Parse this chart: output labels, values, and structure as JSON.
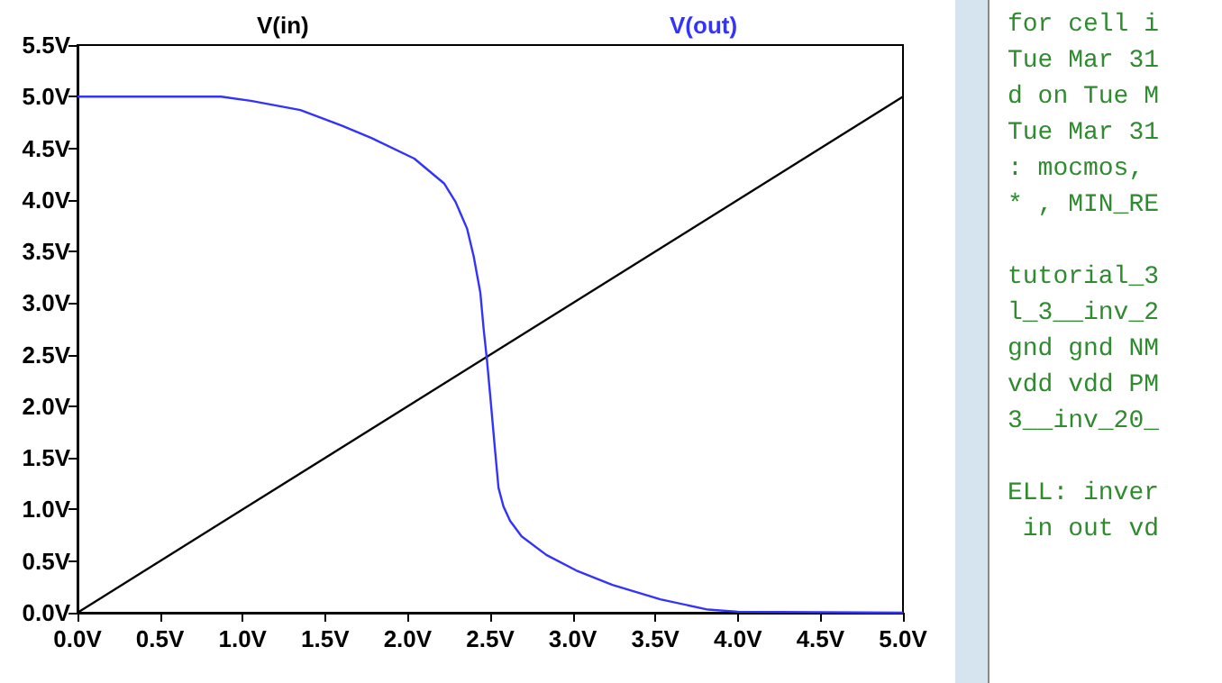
{
  "chart_data": [
    {
      "type": "line",
      "xlim": [
        0,
        5
      ],
      "ylim": [
        0,
        5.5
      ],
      "xticks": [
        {
          "value": 0,
          "label": "0.0V"
        },
        {
          "value": 0.5,
          "label": "0.5V"
        },
        {
          "value": 1,
          "label": "1.0V"
        },
        {
          "value": 1.5,
          "label": "1.5V"
        },
        {
          "value": 2,
          "label": "2.0V"
        },
        {
          "value": 2.5,
          "label": "2.5V"
        },
        {
          "value": 3,
          "label": "3.0V"
        },
        {
          "value": 3.5,
          "label": "3.5V"
        },
        {
          "value": 4,
          "label": "4.0V"
        },
        {
          "value": 4.5,
          "label": "4.5V"
        },
        {
          "value": 5,
          "label": "5.0V"
        }
      ],
      "yticks": [
        {
          "value": 0,
          "label": "0.0V"
        },
        {
          "value": 0.5,
          "label": "0.5V"
        },
        {
          "value": 1,
          "label": "1.0V"
        },
        {
          "value": 1.5,
          "label": "1.5V"
        },
        {
          "value": 2,
          "label": "2.0V"
        },
        {
          "value": 2.5,
          "label": "2.5V"
        },
        {
          "value": 3,
          "label": "3.0V"
        },
        {
          "value": 3.5,
          "label": "3.5V"
        },
        {
          "value": 4,
          "label": "4.0V"
        },
        {
          "value": 4.5,
          "label": "4.5V"
        },
        {
          "value": 5,
          "label": "5.0V"
        },
        {
          "value": 5.5,
          "label": "5.5V"
        }
      ],
      "grid": false,
      "legend": "top",
      "marker": "none",
      "line_style": "solid",
      "series": [
        {
          "name": "V(in)",
          "color": "#000000",
          "x": [
            0,
            5
          ],
          "values": [
            0,
            5
          ]
        },
        {
          "name": "V(out)",
          "color": "#3333ff",
          "x": [
            0,
            0.87,
            1.05,
            1.35,
            1.6,
            1.78,
            2.04,
            2.22,
            2.29,
            2.36,
            2.4,
            2.44,
            2.46,
            2.48,
            2.5,
            2.53,
            2.55,
            2.58,
            2.62,
            2.69,
            2.84,
            3.02,
            3.24,
            3.53,
            3.82,
            4.0,
            5
          ],
          "values": [
            5,
            5,
            4.96,
            4.87,
            4.72,
            4.6,
            4.4,
            4.16,
            3.98,
            3.72,
            3.45,
            3.1,
            2.75,
            2.45,
            2.1,
            1.56,
            1.21,
            1.03,
            0.89,
            0.74,
            0.56,
            0.41,
            0.27,
            0.13,
            0.03,
            0.01,
            0
          ]
        }
      ]
    },
    {
      "type": "other",
      "annotations": [
        "for cell i\nTue Mar 31\nd on Tue M\nTue Mar 31\n: mocmos,\n* , MIN_RE",
        "tutorial_3\nl_3__inv_2\ngnd gnd NM\nvdd vdd PM\n3__inv_20_",
        "ELL: inver\n in out vd"
      ]
    }
  ]
}
